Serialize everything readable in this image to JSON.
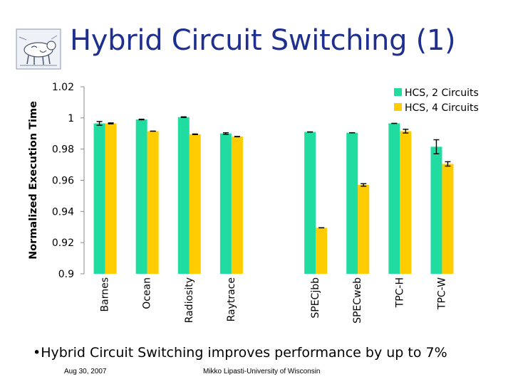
{
  "title": "Hybrid Circuit Switching (1)",
  "logo": {
    "icon": "cow-logo-icon"
  },
  "chart_data": {
    "type": "bar",
    "title": "",
    "ylabel": "Normalized Execution Time",
    "xlabel": "",
    "ylim": [
      0.9,
      1.02
    ],
    "yticks": [
      0.9,
      0.92,
      0.94,
      0.96,
      0.98,
      1,
      1.02
    ],
    "ytick_labels": [
      "0.9",
      "0.92",
      "0.94",
      "0.96",
      "0.98",
      "1",
      "1.02"
    ],
    "categories": [
      "Barnes",
      "Ocean",
      "Radiosity",
      "Raytrace",
      "",
      "SPECjbb",
      "SPECweb",
      "TPC-H",
      "TPC-W"
    ],
    "series": [
      {
        "name": "HCS, 2 Circuits",
        "color": "#20dca0",
        "values": [
          0.9965,
          0.999,
          1.0005,
          0.99,
          null,
          0.991,
          0.9905,
          0.9965,
          0.9815
        ],
        "errors": [
          0.0012,
          0.0002,
          0.0002,
          0.0005,
          null,
          0.0,
          0.0,
          0.0,
          0.0045
        ]
      },
      {
        "name": "HCS, 4 Circuits",
        "color": "#ffcc00",
        "values": [
          0.9965,
          0.9915,
          0.9895,
          0.988,
          null,
          0.9295,
          0.957,
          0.9915,
          0.9705
        ],
        "errors": [
          0.0003,
          0.0,
          0.0002,
          0.0001,
          null,
          0.0,
          0.0008,
          0.0012,
          0.0014
        ]
      }
    ],
    "legend": "top-right",
    "grid": false
  },
  "bullet": "•Hybrid Circuit Switching improves performance by up to 7%",
  "footer": {
    "date": "Aug 30, 2007",
    "author": "Mikko Lipasti-University of Wisconsin"
  }
}
